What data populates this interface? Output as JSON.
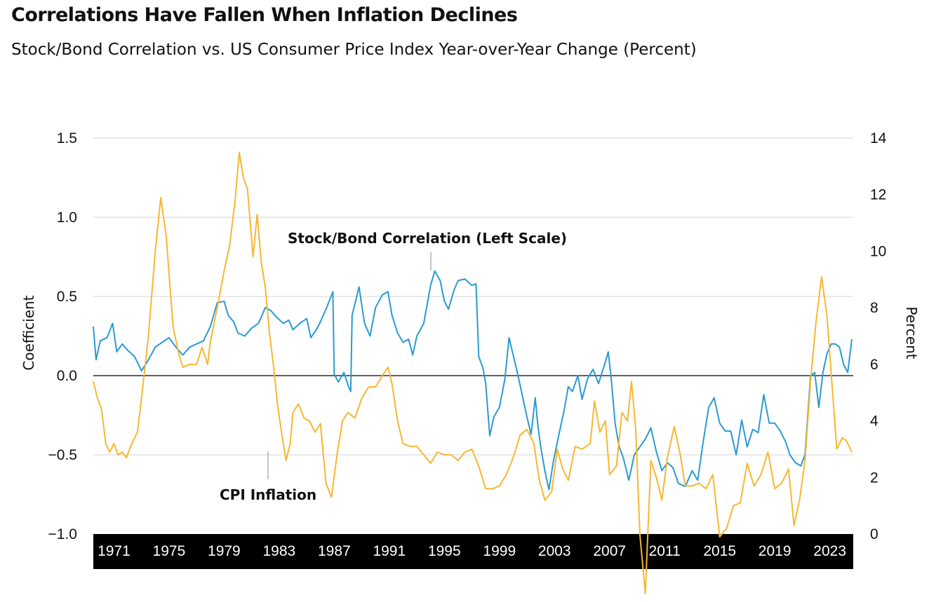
{
  "title": "Correlations Have Fallen When Inflation Declines",
  "subtitle": "Stock/Bond Correlation vs. US Consumer Price Index Year-over-Year Change (Percent)",
  "chart_data": {
    "type": "line",
    "x_range": [
      1969.5,
      2024.7
    ],
    "left_axis": {
      "label": "Coefficient",
      "range": [
        -1.0,
        1.5
      ],
      "ticks": [
        -1.0,
        -0.5,
        0.0,
        0.5,
        1.0,
        1.5
      ],
      "tick_labels": [
        "−1.0",
        "−0.5",
        "0.0",
        "0.5",
        "1.0",
        "1.5"
      ]
    },
    "right_axis": {
      "label": "Percent",
      "range": [
        0,
        14
      ],
      "ticks": [
        0,
        2,
        4,
        6,
        8,
        10,
        12,
        14
      ],
      "tick_labels": [
        "0",
        "2",
        "4",
        "6",
        "8",
        "10",
        "12",
        "14"
      ]
    },
    "x_ticks": [
      1971,
      1975,
      1979,
      1983,
      1987,
      1991,
      1995,
      1999,
      2003,
      2007,
      2011,
      2015,
      2019,
      2023
    ],
    "x_tick_labels": [
      "1971",
      "1975",
      "1979",
      "1983",
      "1987",
      "1991",
      "1995",
      "1999",
      "2003",
      "2007",
      "2011",
      "2015",
      "2019",
      "2023"
    ],
    "grid": true,
    "zero_line": true,
    "annotations": {
      "correlation": "Stock/Bond Correlation (Left Scale)",
      "cpi": "CPI Inflation"
    },
    "series": [
      {
        "name": "Stock/Bond Correlation (Left Scale)",
        "axis": "left",
        "color": "#2a9bd1",
        "points": [
          [
            1969.5,
            0.31
          ],
          [
            1969.7,
            0.1
          ],
          [
            1970.0,
            0.22
          ],
          [
            1970.5,
            0.24
          ],
          [
            1970.9,
            0.33
          ],
          [
            1971.2,
            0.15
          ],
          [
            1971.6,
            0.2
          ],
          [
            1972.0,
            0.16
          ],
          [
            1972.5,
            0.12
          ],
          [
            1973.0,
            0.03
          ],
          [
            1973.5,
            0.1
          ],
          [
            1974.0,
            0.18
          ],
          [
            1974.5,
            0.21
          ],
          [
            1975.0,
            0.24
          ],
          [
            1975.5,
            0.18
          ],
          [
            1976.0,
            0.13
          ],
          [
            1976.5,
            0.18
          ],
          [
            1977.0,
            0.2
          ],
          [
            1977.5,
            0.22
          ],
          [
            1978.0,
            0.31
          ],
          [
            1978.5,
            0.46
          ],
          [
            1979.0,
            0.47
          ],
          [
            1979.3,
            0.38
          ],
          [
            1979.7,
            0.34
          ],
          [
            1980.0,
            0.27
          ],
          [
            1980.5,
            0.25
          ],
          [
            1981.0,
            0.3
          ],
          [
            1981.5,
            0.33
          ],
          [
            1982.0,
            0.43
          ],
          [
            1982.4,
            0.41
          ],
          [
            1982.8,
            0.37
          ],
          [
            1983.3,
            0.33
          ],
          [
            1983.7,
            0.35
          ],
          [
            1984.0,
            0.29
          ],
          [
            1984.5,
            0.33
          ],
          [
            1985.0,
            0.36
          ],
          [
            1985.3,
            0.24
          ],
          [
            1985.7,
            0.29
          ],
          [
            1986.0,
            0.34
          ],
          [
            1986.5,
            0.44
          ],
          [
            1986.9,
            0.53
          ],
          [
            1987.0,
            0.01
          ],
          [
            1987.3,
            -0.04
          ],
          [
            1987.7,
            0.02
          ],
          [
            1988.0,
            -0.06
          ],
          [
            1988.2,
            -0.1
          ],
          [
            1988.3,
            0.38
          ],
          [
            1988.8,
            0.56
          ],
          [
            1989.2,
            0.33
          ],
          [
            1989.6,
            0.25
          ],
          [
            1990.0,
            0.43
          ],
          [
            1990.5,
            0.51
          ],
          [
            1990.9,
            0.53
          ],
          [
            1991.2,
            0.38
          ],
          [
            1991.6,
            0.27
          ],
          [
            1992.0,
            0.21
          ],
          [
            1992.4,
            0.23
          ],
          [
            1992.7,
            0.13
          ],
          [
            1993.0,
            0.25
          ],
          [
            1993.5,
            0.33
          ],
          [
            1994.0,
            0.57
          ],
          [
            1994.3,
            0.66
          ],
          [
            1994.7,
            0.6
          ],
          [
            1995.0,
            0.47
          ],
          [
            1995.3,
            0.42
          ],
          [
            1995.7,
            0.54
          ],
          [
            1996.0,
            0.6
          ],
          [
            1996.5,
            0.61
          ],
          [
            1997.0,
            0.57
          ],
          [
            1997.3,
            0.58
          ],
          [
            1997.5,
            0.12
          ],
          [
            1997.8,
            0.05
          ],
          [
            1998.0,
            -0.05
          ],
          [
            1998.3,
            -0.38
          ],
          [
            1998.6,
            -0.26
          ],
          [
            1999.0,
            -0.2
          ],
          [
            1999.4,
            -0.02
          ],
          [
            1999.7,
            0.24
          ],
          [
            2000.0,
            0.13
          ],
          [
            2000.3,
            0.02
          ],
          [
            2000.6,
            -0.1
          ],
          [
            2001.0,
            -0.26
          ],
          [
            2001.3,
            -0.37
          ],
          [
            2001.6,
            -0.14
          ],
          [
            2001.8,
            -0.32
          ],
          [
            2002.0,
            -0.45
          ],
          [
            2002.3,
            -0.6
          ],
          [
            2002.6,
            -0.72
          ],
          [
            2002.9,
            -0.55
          ],
          [
            2003.3,
            -0.38
          ],
          [
            2003.7,
            -0.22
          ],
          [
            2004.0,
            -0.07
          ],
          [
            2004.3,
            -0.1
          ],
          [
            2004.7,
            0.0
          ],
          [
            2005.0,
            -0.15
          ],
          [
            2005.4,
            -0.02
          ],
          [
            2005.8,
            0.04
          ],
          [
            2006.2,
            -0.05
          ],
          [
            2006.6,
            0.06
          ],
          [
            2006.9,
            0.15
          ],
          [
            2007.1,
            0.0
          ],
          [
            2007.4,
            -0.3
          ],
          [
            2007.7,
            -0.45
          ],
          [
            2008.0,
            -0.52
          ],
          [
            2008.4,
            -0.66
          ],
          [
            2008.8,
            -0.5
          ],
          [
            2009.2,
            -0.45
          ],
          [
            2009.6,
            -0.4
          ],
          [
            2010.0,
            -0.33
          ],
          [
            2010.4,
            -0.48
          ],
          [
            2010.8,
            -0.6
          ],
          [
            2011.2,
            -0.55
          ],
          [
            2011.6,
            -0.58
          ],
          [
            2012.0,
            -0.68
          ],
          [
            2012.5,
            -0.7
          ],
          [
            2013.0,
            -0.6
          ],
          [
            2013.4,
            -0.66
          ],
          [
            2013.8,
            -0.42
          ],
          [
            2014.2,
            -0.2
          ],
          [
            2014.6,
            -0.14
          ],
          [
            2015.0,
            -0.3
          ],
          [
            2015.4,
            -0.35
          ],
          [
            2015.8,
            -0.35
          ],
          [
            2016.2,
            -0.5
          ],
          [
            2016.6,
            -0.28
          ],
          [
            2017.0,
            -0.45
          ],
          [
            2017.4,
            -0.34
          ],
          [
            2017.8,
            -0.36
          ],
          [
            2018.2,
            -0.12
          ],
          [
            2018.6,
            -0.3
          ],
          [
            2019.0,
            -0.3
          ],
          [
            2019.4,
            -0.35
          ],
          [
            2019.8,
            -0.42
          ],
          [
            2020.1,
            -0.5
          ],
          [
            2020.5,
            -0.55
          ],
          [
            2020.9,
            -0.57
          ],
          [
            2021.2,
            -0.5
          ],
          [
            2021.6,
            0.0
          ],
          [
            2021.9,
            0.02
          ],
          [
            2022.2,
            -0.2
          ],
          [
            2022.5,
            0.02
          ],
          [
            2022.8,
            0.14
          ],
          [
            2023.1,
            0.2
          ],
          [
            2023.4,
            0.2
          ],
          [
            2023.7,
            0.18
          ],
          [
            2024.0,
            0.07
          ],
          [
            2024.3,
            0.02
          ],
          [
            2024.6,
            0.23
          ]
        ]
      },
      {
        "name": "CPI Inflation",
        "axis": "right",
        "color": "#f7b731",
        "points": [
          [
            1969.5,
            5.4
          ],
          [
            1969.8,
            4.8
          ],
          [
            1970.1,
            4.4
          ],
          [
            1970.4,
            3.2
          ],
          [
            1970.7,
            2.9
          ],
          [
            1971.0,
            3.2
          ],
          [
            1971.3,
            2.8
          ],
          [
            1971.6,
            2.9
          ],
          [
            1971.9,
            2.7
          ],
          [
            1972.3,
            3.2
          ],
          [
            1972.7,
            3.6
          ],
          [
            1973.0,
            4.8
          ],
          [
            1973.5,
            7.0
          ],
          [
            1974.0,
            10.0
          ],
          [
            1974.4,
            11.9
          ],
          [
            1974.8,
            10.5
          ],
          [
            1975.0,
            9.2
          ],
          [
            1975.3,
            7.3
          ],
          [
            1975.7,
            6.4
          ],
          [
            1976.0,
            5.9
          ],
          [
            1976.5,
            6.0
          ],
          [
            1977.0,
            6.0
          ],
          [
            1977.4,
            6.6
          ],
          [
            1977.8,
            6.0
          ],
          [
            1978.0,
            6.8
          ],
          [
            1978.5,
            8.0
          ],
          [
            1979.0,
            9.3
          ],
          [
            1979.4,
            10.2
          ],
          [
            1979.8,
            11.8
          ],
          [
            1980.1,
            13.5
          ],
          [
            1980.4,
            12.6
          ],
          [
            1980.7,
            12.2
          ],
          [
            1981.1,
            9.8
          ],
          [
            1981.4,
            11.3
          ],
          [
            1981.7,
            9.6
          ],
          [
            1982.0,
            8.7
          ],
          [
            1982.3,
            7.1
          ],
          [
            1982.6,
            5.9
          ],
          [
            1982.9,
            4.5
          ],
          [
            1983.2,
            3.5
          ],
          [
            1983.5,
            2.6
          ],
          [
            1983.8,
            3.2
          ],
          [
            1984.0,
            4.3
          ],
          [
            1984.4,
            4.6
          ],
          [
            1984.8,
            4.1
          ],
          [
            1985.2,
            4.0
          ],
          [
            1985.6,
            3.6
          ],
          [
            1986.0,
            3.9
          ],
          [
            1986.4,
            1.8
          ],
          [
            1986.8,
            1.3
          ],
          [
            1987.2,
            2.8
          ],
          [
            1987.6,
            4.0
          ],
          [
            1988.0,
            4.3
          ],
          [
            1988.5,
            4.1
          ],
          [
            1989.0,
            4.8
          ],
          [
            1989.5,
            5.2
          ],
          [
            1990.0,
            5.2
          ],
          [
            1990.5,
            5.6
          ],
          [
            1990.9,
            5.9
          ],
          [
            1991.2,
            5.3
          ],
          [
            1991.6,
            4.0
          ],
          [
            1992.0,
            3.2
          ],
          [
            1992.5,
            3.1
          ],
          [
            1993.0,
            3.1
          ],
          [
            1993.5,
            2.8
          ],
          [
            1994.0,
            2.5
          ],
          [
            1994.5,
            2.9
          ],
          [
            1995.0,
            2.8
          ],
          [
            1995.5,
            2.8
          ],
          [
            1996.0,
            2.6
          ],
          [
            1996.5,
            2.9
          ],
          [
            1997.0,
            3.0
          ],
          [
            1997.5,
            2.4
          ],
          [
            1998.0,
            1.6
          ],
          [
            1998.5,
            1.6
          ],
          [
            1999.0,
            1.7
          ],
          [
            1999.5,
            2.1
          ],
          [
            2000.0,
            2.7
          ],
          [
            2000.5,
            3.5
          ],
          [
            2001.0,
            3.7
          ],
          [
            2001.5,
            3.2
          ],
          [
            2001.9,
            1.9
          ],
          [
            2002.3,
            1.2
          ],
          [
            2002.8,
            1.5
          ],
          [
            2003.2,
            3.0
          ],
          [
            2003.6,
            2.3
          ],
          [
            2004.0,
            1.9
          ],
          [
            2004.5,
            3.1
          ],
          [
            2005.0,
            3.0
          ],
          [
            2005.6,
            3.2
          ],
          [
            2005.9,
            4.7
          ],
          [
            2006.3,
            3.6
          ],
          [
            2006.7,
            4.0
          ],
          [
            2007.0,
            2.1
          ],
          [
            2007.5,
            2.4
          ],
          [
            2007.9,
            4.3
          ],
          [
            2008.3,
            4.0
          ],
          [
            2008.6,
            5.4
          ],
          [
            2008.9,
            3.7
          ],
          [
            2009.2,
            0.0
          ],
          [
            2009.6,
            -2.1
          ],
          [
            2010.0,
            2.6
          ],
          [
            2010.4,
            2.0
          ],
          [
            2010.8,
            1.2
          ],
          [
            2011.2,
            2.7
          ],
          [
            2011.7,
            3.8
          ],
          [
            2012.1,
            2.9
          ],
          [
            2012.5,
            1.7
          ],
          [
            2013.0,
            1.7
          ],
          [
            2013.5,
            1.8
          ],
          [
            2014.0,
            1.6
          ],
          [
            2014.5,
            2.1
          ],
          [
            2015.0,
            -0.1
          ],
          [
            2015.5,
            0.2
          ],
          [
            2016.0,
            1.0
          ],
          [
            2016.5,
            1.1
          ],
          [
            2017.0,
            2.5
          ],
          [
            2017.5,
            1.7
          ],
          [
            2018.0,
            2.1
          ],
          [
            2018.5,
            2.9
          ],
          [
            2019.0,
            1.6
          ],
          [
            2019.5,
            1.8
          ],
          [
            2020.0,
            2.3
          ],
          [
            2020.4,
            0.3
          ],
          [
            2020.8,
            1.2
          ],
          [
            2021.2,
            2.6
          ],
          [
            2021.6,
            5.4
          ],
          [
            2022.0,
            7.5
          ],
          [
            2022.4,
            9.1
          ],
          [
            2022.8,
            7.7
          ],
          [
            2023.2,
            5.0
          ],
          [
            2023.5,
            3.0
          ],
          [
            2023.9,
            3.4
          ],
          [
            2024.2,
            3.3
          ],
          [
            2024.6,
            2.9
          ]
        ]
      }
    ]
  }
}
